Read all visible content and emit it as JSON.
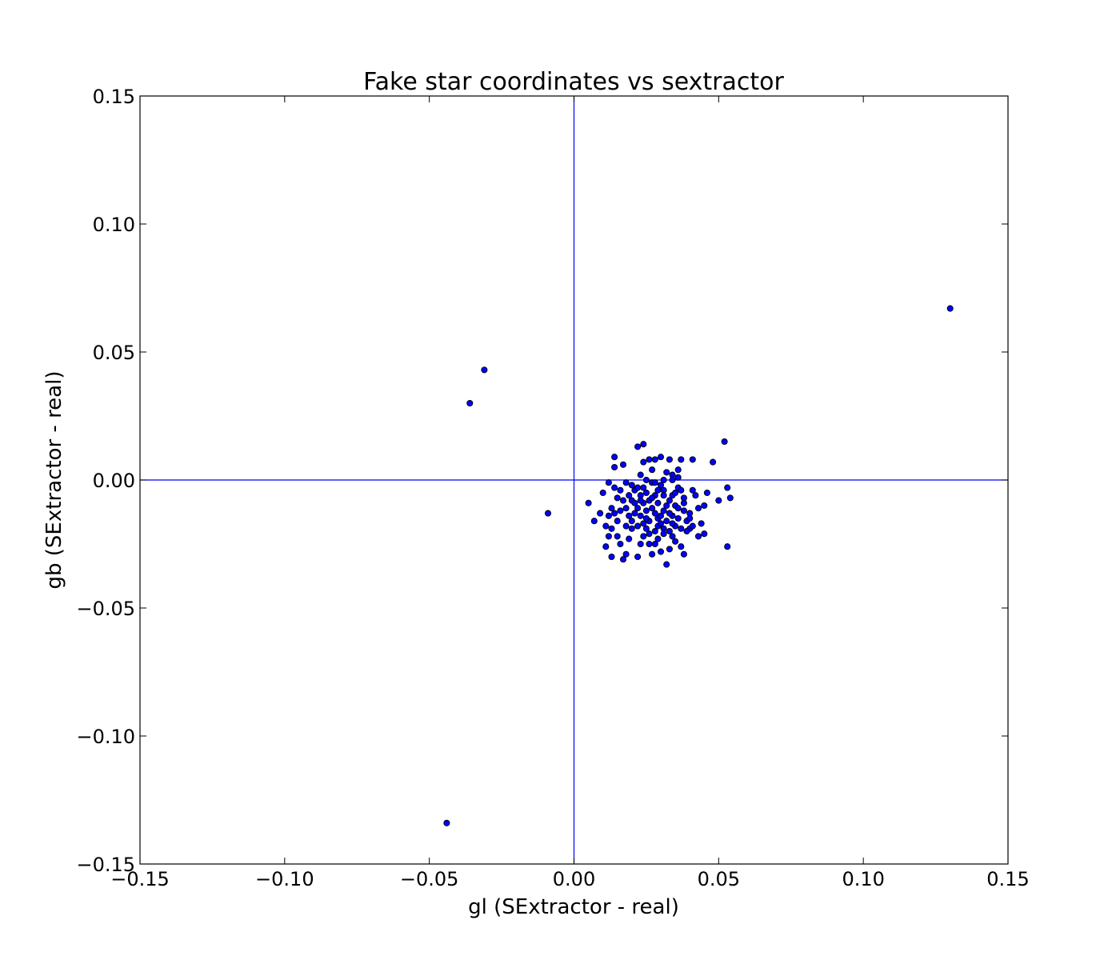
{
  "chart_data": {
    "type": "scatter",
    "title": "Fake star coordinates vs sextractor",
    "xlabel": "gl (SExtractor - real)",
    "ylabel": "gb (SExtractor - real)",
    "xlim": [
      -0.15,
      0.15
    ],
    "ylim": [
      -0.15,
      0.15
    ],
    "xticks": [
      -0.15,
      -0.1,
      -0.05,
      0.0,
      0.05,
      0.1,
      0.15
    ],
    "yticks": [
      -0.15,
      -0.1,
      -0.05,
      0.0,
      0.05,
      0.1,
      0.15
    ],
    "xtick_labels": [
      "−0.15",
      "−0.10",
      "−0.05",
      "0.00",
      "0.05",
      "0.10",
      "0.15"
    ],
    "ytick_labels": [
      "−0.15",
      "−0.10",
      "−0.05",
      "0.00",
      "0.05",
      "0.10",
      "0.15"
    ],
    "reference_lines": {
      "x0": 0.0,
      "y0": 0.0,
      "color": "#0000ff"
    },
    "marker_fill": "#0000ff",
    "marker_edge": "#000000",
    "grid": false,
    "legend": "none",
    "points": [
      [
        0.13,
        0.067
      ],
      [
        -0.031,
        0.043
      ],
      [
        -0.036,
        0.03
      ],
      [
        -0.044,
        -0.134
      ],
      [
        -0.009,
        -0.013
      ],
      [
        0.052,
        0.015
      ],
      [
        0.048,
        0.007
      ],
      [
        0.053,
        -0.003
      ],
      [
        0.054,
        -0.007
      ],
      [
        0.05,
        -0.008
      ],
      [
        0.053,
        -0.026
      ],
      [
        0.046,
        -0.005
      ],
      [
        0.045,
        -0.01
      ],
      [
        0.044,
        -0.017
      ],
      [
        0.045,
        -0.021
      ],
      [
        0.043,
        -0.022
      ],
      [
        0.041,
        0.008
      ],
      [
        0.041,
        -0.004
      ],
      [
        0.04,
        -0.013
      ],
      [
        0.04,
        -0.019
      ],
      [
        0.039,
        -0.016
      ],
      [
        0.038,
        -0.007
      ],
      [
        0.038,
        -0.029
      ],
      [
        0.037,
        -0.026
      ],
      [
        0.037,
        0.008
      ],
      [
        0.036,
        0.004
      ],
      [
        0.036,
        0.001
      ],
      [
        0.036,
        -0.003
      ],
      [
        0.035,
        -0.01
      ],
      [
        0.035,
        -0.018
      ],
      [
        0.034,
        0.002
      ],
      [
        0.034,
        -0.006
      ],
      [
        0.034,
        -0.014
      ],
      [
        0.034,
        -0.022
      ],
      [
        0.033,
        -0.027
      ],
      [
        0.033,
        0.008
      ],
      [
        0.033,
        -0.008
      ],
      [
        0.032,
        -0.033
      ],
      [
        0.032,
        -0.016
      ],
      [
        0.032,
        0.003
      ],
      [
        0.031,
        -0.004
      ],
      [
        0.031,
        -0.012
      ],
      [
        0.031,
        -0.019
      ],
      [
        0.03,
        0.009
      ],
      [
        0.03,
        -0.028
      ],
      [
        0.03,
        -0.002
      ],
      [
        0.029,
        -0.009
      ],
      [
        0.029,
        -0.015
      ],
      [
        0.029,
        -0.023
      ],
      [
        0.028,
        0.008
      ],
      [
        0.028,
        -0.006
      ],
      [
        0.028,
        -0.013
      ],
      [
        0.028,
        -0.02
      ],
      [
        0.027,
        -0.029
      ],
      [
        0.027,
        0.004
      ],
      [
        0.027,
        -0.001
      ],
      [
        0.026,
        -0.008
      ],
      [
        0.026,
        -0.016
      ],
      [
        0.026,
        -0.025
      ],
      [
        0.025,
        0.0
      ],
      [
        0.025,
        -0.005
      ],
      [
        0.025,
        -0.012
      ],
      [
        0.025,
        -0.019
      ],
      [
        0.024,
        0.014
      ],
      [
        0.024,
        0.007
      ],
      [
        0.024,
        -0.003
      ],
      [
        0.024,
        -0.009
      ],
      [
        0.024,
        -0.017
      ],
      [
        0.023,
        -0.025
      ],
      [
        0.023,
        0.002
      ],
      [
        0.023,
        -0.006
      ],
      [
        0.022,
        0.013
      ],
      [
        0.022,
        -0.011
      ],
      [
        0.022,
        -0.018
      ],
      [
        0.022,
        -0.03
      ],
      [
        0.021,
        -0.004
      ],
      [
        0.021,
        -0.013
      ],
      [
        0.02,
        -0.002
      ],
      [
        0.02,
        -0.008
      ],
      [
        0.02,
        -0.016
      ],
      [
        0.019,
        -0.023
      ],
      [
        0.019,
        -0.006
      ],
      [
        0.018,
        -0.011
      ],
      [
        0.018,
        -0.018
      ],
      [
        0.018,
        -0.029
      ],
      [
        0.017,
        -0.031
      ],
      [
        0.017,
        0.006
      ],
      [
        0.016,
        -0.004
      ],
      [
        0.016,
        -0.012
      ],
      [
        0.016,
        -0.025
      ],
      [
        0.015,
        -0.007
      ],
      [
        0.015,
        -0.016
      ],
      [
        0.014,
        0.009
      ],
      [
        0.014,
        0.005
      ],
      [
        0.014,
        -0.003
      ],
      [
        0.013,
        -0.011
      ],
      [
        0.013,
        -0.019
      ],
      [
        0.013,
        -0.03
      ],
      [
        0.012,
        -0.001
      ],
      [
        0.012,
        -0.014
      ],
      [
        0.011,
        -0.018
      ],
      [
        0.011,
        -0.026
      ],
      [
        0.01,
        -0.005
      ],
      [
        0.009,
        -0.013
      ],
      [
        0.007,
        -0.016
      ],
      [
        0.005,
        -0.009
      ],
      [
        0.036,
        -0.015
      ],
      [
        0.038,
        -0.012
      ],
      [
        0.039,
        -0.02
      ],
      [
        0.042,
        -0.006
      ],
      [
        0.043,
        -0.011
      ],
      [
        0.035,
        -0.024
      ],
      [
        0.033,
        -0.02
      ],
      [
        0.031,
        -0.006
      ],
      [
        0.03,
        -0.014
      ],
      [
        0.029,
        -0.018
      ],
      [
        0.027,
        -0.011
      ],
      [
        0.026,
        -0.021
      ],
      [
        0.023,
        -0.014
      ],
      [
        0.021,
        -0.009
      ],
      [
        0.019,
        -0.014
      ],
      [
        0.017,
        -0.008
      ],
      [
        0.028,
        -0.025
      ],
      [
        0.032,
        -0.01
      ],
      [
        0.034,
        -0.017
      ],
      [
        0.037,
        -0.019
      ],
      [
        0.035,
        -0.005
      ],
      [
        0.038,
        -0.009
      ],
      [
        0.04,
        -0.015
      ],
      [
        0.033,
        -0.013
      ],
      [
        0.03,
        -0.017
      ],
      [
        0.027,
        -0.007
      ],
      [
        0.025,
        -0.015
      ],
      [
        0.022,
        -0.003
      ],
      [
        0.029,
        -0.004
      ],
      [
        0.031,
        -0.021
      ],
      [
        0.036,
        -0.011
      ],
      [
        0.041,
        -0.018
      ],
      [
        0.024,
        -0.022
      ],
      [
        0.02,
        -0.019
      ],
      [
        0.026,
        0.008
      ],
      [
        0.031,
        0.0
      ],
      [
        0.034,
        0.0
      ],
      [
        0.037,
        -0.004
      ],
      [
        0.028,
        -0.001
      ],
      [
        0.015,
        -0.022
      ],
      [
        0.012,
        -0.022
      ],
      [
        0.018,
        -0.001
      ],
      [
        0.014,
        -0.013
      ],
      [
        0.023,
        -0.008
      ]
    ]
  }
}
